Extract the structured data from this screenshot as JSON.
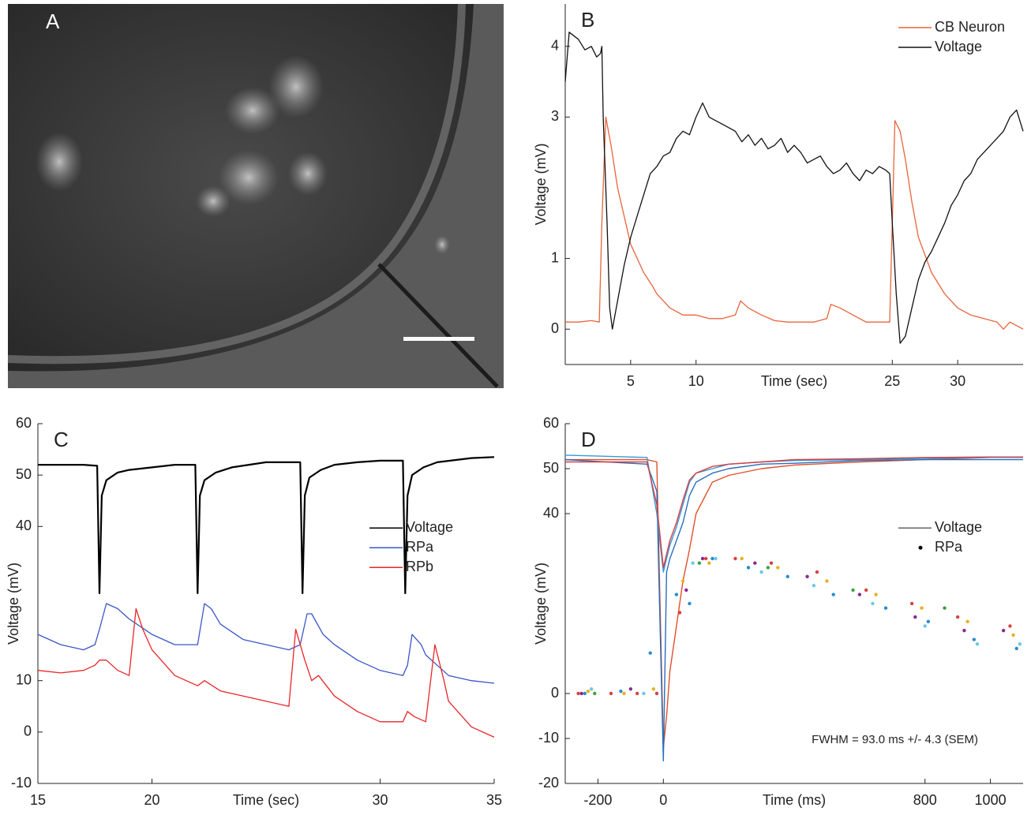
{
  "chart_data": [
    {
      "type": "image",
      "title": "A"
    },
    {
      "type": "line",
      "title": "B",
      "xlabel": "Time (sec)",
      "ylabel": "Voltage (mV)",
      "xlim": [
        0,
        35
      ],
      "ylim": [
        -0.5,
        4.6
      ],
      "xticks": [
        5,
        10,
        25,
        30
      ],
      "yticks": [
        0,
        1,
        3,
        4
      ],
      "legend": "upper right",
      "series": [
        {
          "name": "CB Neuron",
          "color": "#e8643c",
          "x": [
            0,
            1,
            2,
            2.6,
            2.8,
            3.1,
            3.5,
            4,
            5,
            6,
            6.7,
            7,
            8,
            9,
            10,
            11,
            12,
            13,
            13.4,
            14,
            15,
            16,
            17,
            18,
            19,
            20,
            20.3,
            21,
            22,
            23,
            24,
            24.8,
            25,
            25.2,
            25.6,
            26,
            26.5,
            27,
            28,
            29,
            30,
            31,
            32,
            33,
            33.5,
            34,
            35
          ],
          "values": [
            0.1,
            0.1,
            0.12,
            0.1,
            1.5,
            3.0,
            2.6,
            2.0,
            1.2,
            0.8,
            0.6,
            0.5,
            0.3,
            0.2,
            0.2,
            0.15,
            0.15,
            0.2,
            0.4,
            0.3,
            0.2,
            0.12,
            0.1,
            0.1,
            0.1,
            0.15,
            0.35,
            0.3,
            0.2,
            0.1,
            0.1,
            0.1,
            1.5,
            2.95,
            2.8,
            2.4,
            1.8,
            1.3,
            0.8,
            0.5,
            0.3,
            0.2,
            0.15,
            0.1,
            0.0,
            0.1,
            0.0
          ]
        },
        {
          "name": "Voltage",
          "color": "#111111",
          "x": [
            0,
            0.3,
            1,
            1.5,
            2,
            2.4,
            2.7,
            2.8,
            2.9,
            3.2,
            3.4,
            3.6,
            4,
            4.5,
            5,
            5.5,
            6,
            6.5,
            7,
            7.5,
            8,
            8.5,
            9,
            9.5,
            10,
            10.5,
            11,
            11.5,
            12,
            12.5,
            13,
            13.5,
            14,
            14.5,
            15,
            15.5,
            16,
            16.5,
            17,
            17.5,
            18,
            18.5,
            19,
            19.5,
            20,
            20.5,
            21,
            21.5,
            22,
            22.5,
            23,
            23.5,
            24,
            24.5,
            24.8,
            25,
            25.3,
            25.6,
            26,
            26.5,
            27,
            27.5,
            28,
            28.5,
            29,
            29.5,
            30,
            30.5,
            31,
            31.5,
            32,
            32.5,
            33,
            33.5,
            34,
            34.5,
            35
          ],
          "values": [
            3.5,
            4.2,
            4.1,
            3.95,
            4.0,
            3.85,
            3.9,
            4.0,
            3.0,
            1.5,
            0.3,
            0.0,
            0.4,
            0.9,
            1.3,
            1.6,
            1.9,
            2.2,
            2.3,
            2.45,
            2.5,
            2.7,
            2.8,
            2.75,
            3.0,
            3.2,
            3.0,
            2.95,
            2.9,
            2.85,
            2.8,
            2.65,
            2.75,
            2.6,
            2.7,
            2.55,
            2.6,
            2.7,
            2.5,
            2.6,
            2.5,
            2.35,
            2.4,
            2.45,
            2.3,
            2.2,
            2.25,
            2.35,
            2.2,
            2.1,
            2.25,
            2.2,
            2.3,
            2.25,
            2.2,
            1.5,
            0.5,
            -0.2,
            -0.1,
            0.3,
            0.7,
            0.95,
            1.1,
            1.3,
            1.5,
            1.75,
            1.9,
            2.1,
            2.2,
            2.4,
            2.5,
            2.6,
            2.7,
            2.8,
            3.0,
            3.1,
            2.8
          ]
        }
      ]
    },
    {
      "type": "line",
      "title": "C",
      "xlabel": "Time (sec)",
      "ylabel": "Voltage (mV)",
      "xlim": [
        15,
        35
      ],
      "ylim": [
        -10,
        60
      ],
      "xticks": [
        15,
        20,
        30,
        35
      ],
      "yticks": [
        -10,
        0,
        10,
        40,
        50,
        60
      ],
      "legend": "right",
      "series": [
        {
          "name": "Voltage",
          "color": "#000000",
          "x": [
            15,
            16,
            17,
            17.6,
            17.7,
            17.8,
            18,
            18.5,
            19,
            20,
            21,
            21.9,
            22,
            22.1,
            22.3,
            22.8,
            23.5,
            25,
            26.5,
            26.6,
            26.7,
            26.9,
            27.4,
            28,
            29,
            30,
            31,
            31.1,
            31.2,
            31.4,
            31.9,
            32.5,
            34,
            35
          ],
          "values": [
            52,
            52,
            52,
            51.8,
            27,
            46,
            49,
            50.5,
            51,
            51.5,
            52,
            52,
            27,
            46,
            49,
            50.5,
            51.5,
            52.5,
            52.5,
            27,
            46,
            49.5,
            51,
            52,
            52.5,
            52.8,
            52.8,
            27,
            46,
            50,
            51.5,
            52.5,
            53.3,
            53.5
          ]
        },
        {
          "name": "RPa",
          "color": "#3a56c8",
          "x": [
            15,
            16,
            17,
            17.5,
            17.7,
            18,
            18.5,
            19,
            20,
            21,
            22,
            22.3,
            22.6,
            23,
            24,
            25,
            26,
            26.5,
            26.8,
            27,
            27.5,
            28,
            29,
            30,
            31,
            31.2,
            31.4,
            31.8,
            32,
            32.5,
            33,
            34,
            35
          ],
          "values": [
            19,
            17,
            16,
            17,
            20,
            25,
            24,
            22,
            19,
            17,
            17,
            25,
            24,
            21,
            18,
            17,
            16,
            17,
            23,
            23,
            19,
            17,
            14,
            12,
            11,
            13,
            19,
            17,
            15,
            13,
            11,
            10,
            9.5
          ]
        },
        {
          "name": "RPb",
          "color": "#e8262a",
          "x": [
            15,
            16,
            17,
            17.5,
            17.7,
            18,
            18.5,
            19,
            19.3,
            19.6,
            20,
            21,
            22,
            22.3,
            23,
            24,
            25,
            26,
            26.3,
            26.7,
            27,
            27.3,
            28,
            29,
            30,
            31,
            31.2,
            31.5,
            32,
            32.4,
            32.8,
            33,
            34,
            35
          ],
          "values": [
            12,
            11.5,
            12,
            13,
            14,
            14,
            12,
            11,
            24,
            20,
            16,
            11,
            9,
            10,
            8,
            7,
            6,
            5,
            20,
            14,
            10,
            11,
            7,
            4,
            2,
            2,
            4,
            3,
            2,
            17,
            10,
            6,
            1,
            -1
          ]
        }
      ]
    },
    {
      "type": "line",
      "title": "D",
      "xlabel": "Time (ms)",
      "ylabel": "Voltage (mV)",
      "xlim": [
        -300,
        1100
      ],
      "ylim": [
        -20,
        60
      ],
      "xticks": [
        -200,
        0,
        800,
        1000
      ],
      "yticks": [
        -20,
        -10,
        0,
        40,
        50,
        60
      ],
      "legend": "right",
      "annotation": "FWHM = 93.0 ms +/- 4.3 (SEM)",
      "x": [
        -300,
        -50,
        -20,
        0,
        10,
        20,
        40,
        60,
        80,
        100,
        150,
        200,
        300,
        400,
        600,
        800,
        1000,
        1100
      ],
      "series": [
        {
          "name": "Voltage",
          "color": "#666666",
          "traces": [
            {
              "color": "#e0502a",
              "values": [
                52,
                52,
                51.5,
                -12,
                -5,
                5,
                15,
                25,
                32,
                40,
                47,
                48.5,
                50,
                50.8,
                51.5,
                52,
                52.5,
                52.5
              ]
            },
            {
              "color": "#2a6ebb",
              "values": [
                52,
                51,
                45,
                -15,
                27,
                30,
                34,
                38,
                44,
                47,
                49,
                50,
                51,
                51.2,
                51.8,
                52,
                52,
                52
              ]
            },
            {
              "color": "#3399dd",
              "values": [
                53,
                52.5,
                40,
                27,
                30,
                33,
                37,
                42,
                47,
                49,
                50,
                51,
                51.5,
                51.8,
                52,
                52.3,
                52.5,
                52.5
              ]
            },
            {
              "color": "#d94040",
              "values": [
                51.5,
                51.5,
                42,
                28,
                31,
                34,
                38,
                43,
                47.5,
                49,
                50.5,
                51,
                51.5,
                52,
                52.2,
                52.5,
                52.6,
                52.6
              ]
            }
          ]
        },
        {
          "name": "RPa",
          "color": "#000000",
          "groups": [
            {
              "color": "#d94040",
              "x": [
                -260,
                -160,
                -80,
                -20,
                50,
                130,
                220,
                330,
                470,
                620,
                760,
                900,
                1060
              ],
              "values": [
                0,
                0,
                0,
                0,
                18,
                30,
                30,
                29,
                27,
                23,
                20,
                17,
                15
              ]
            },
            {
              "color": "#2a8bd0",
              "x": [
                -240,
                -130,
                -40,
                40,
                80,
                150,
                260,
                380,
                520,
                680,
                810,
                950,
                1080
              ],
              "values": [
                0,
                0.5,
                9,
                22,
                20,
                30,
                28,
                26,
                22,
                19,
                16,
                12,
                10
              ]
            },
            {
              "color": "#e8b020",
              "x": [
                -230,
                -120,
                -30,
                60,
                140,
                240,
                350,
                500,
                650,
                790,
                930,
                1070
              ],
              "values": [
                0.5,
                0,
                1,
                25,
                29,
                30,
                28,
                25,
                22,
                19,
                16,
                13
              ]
            },
            {
              "color": "#8a2a8a",
              "x": [
                -250,
                -100,
                70,
                120,
                280,
                440,
                600,
                770,
                920,
                1040
              ],
              "values": [
                0,
                1,
                23,
                30,
                29,
                26,
                22,
                17,
                14,
                14
              ]
            },
            {
              "color": "#6ac8e8",
              "x": [
                -220,
                -60,
                90,
                160,
                300,
                460,
                640,
                800,
                960,
                1090
              ],
              "values": [
                1,
                0,
                29,
                30,
                27,
                24,
                20,
                15,
                11,
                11
              ]
            },
            {
              "color": "#40a040",
              "x": [
                -210,
                110,
                320,
                580,
                860
              ],
              "values": [
                0,
                29,
                28,
                23,
                19
              ]
            }
          ]
        }
      ]
    }
  ]
}
